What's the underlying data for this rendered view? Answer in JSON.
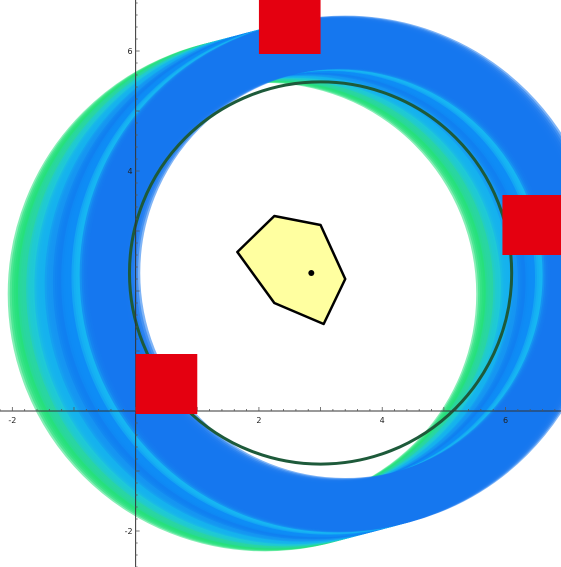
{
  "chart_data": {
    "type": "scatter",
    "xlim": [
      -2.2,
      6.9
    ],
    "ylim": [
      -2.6,
      6.85
    ],
    "grid": false,
    "x_ticks": [
      {
        "value": -2,
        "label": "-2"
      },
      {
        "value": 2,
        "label": "2"
      },
      {
        "value": 4,
        "label": "4"
      },
      {
        "value": 6,
        "label": "6"
      }
    ],
    "y_ticks": [
      {
        "value": -2,
        "label": "-2"
      },
      {
        "value": 4,
        "label": "4"
      },
      {
        "value": 6,
        "label": "6"
      }
    ],
    "ring_sweep": {
      "center_start": [
        2.1,
        1.95
      ],
      "center_end": [
        3.4,
        2.3
      ],
      "radius_start": 3.8,
      "radius_end": 3.75,
      "width_start": 0.75,
      "width_end": 0.85,
      "colors": [
        "#22e07a",
        "#2ad6a6",
        "#1fc8d8",
        "#16b0ee",
        "#1693f2",
        "#117ff0",
        "#0f8ef5",
        "#18b8f2",
        "#1676ee"
      ]
    },
    "circle": {
      "center": [
        3.0,
        2.3
      ],
      "radius": 3.1,
      "color": "#1d5a3a"
    },
    "polygon": {
      "points": [
        [
          1.65,
          2.65
        ],
        [
          2.25,
          3.25
        ],
        [
          3.0,
          3.1
        ],
        [
          3.4,
          2.2
        ],
        [
          3.05,
          1.45
        ],
        [
          2.25,
          1.8
        ]
      ],
      "fill": "#ffffa0",
      "stroke": "#000000"
    },
    "center_point": {
      "x": 2.85,
      "y": 2.3
    },
    "squares": [
      {
        "x": 2.0,
        "y": 5.95,
        "size": 1.0,
        "color": "#e40010"
      },
      {
        "x": 5.95,
        "y": 2.6,
        "size": 1.0,
        "color": "#e40010"
      },
      {
        "x": 0.0,
        "y": -0.05,
        "size": 1.0,
        "color": "#e40010"
      }
    ]
  }
}
